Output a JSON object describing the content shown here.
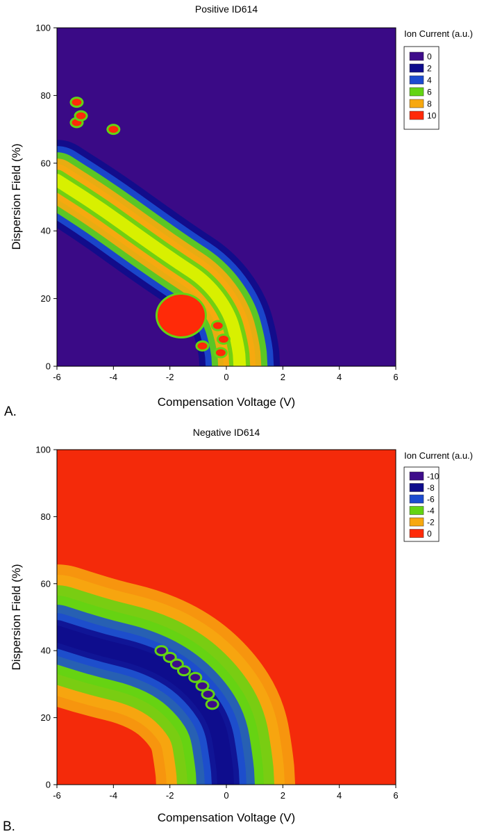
{
  "chart_data": [
    {
      "type": "heatmap",
      "subtype": "filled-contour",
      "title": "Positive ID614",
      "panel_label": "A.",
      "xlabel": "Compensation Voltage (V)",
      "ylabel": "Dispersion Field (%)",
      "xlim": [
        -6,
        6
      ],
      "ylim": [
        0,
        100
      ],
      "xticks": [
        "-6",
        "-4",
        "-2",
        "0",
        "2",
        "4",
        "6"
      ],
      "yticks": [
        "0",
        "20",
        "40",
        "60",
        "80",
        "100"
      ],
      "legend_title": "Ion Current (a.u.)",
      "legend_position": "right",
      "legend": [
        {
          "label": "0",
          "color": "#3e0c8a"
        },
        {
          "label": "2",
          "color": "#0e0c8c"
        },
        {
          "label": "4",
          "color": "#1c4bd0"
        },
        {
          "label": "6",
          "color": "#63d413"
        },
        {
          "label": "8",
          "color": "#f7a80f"
        },
        {
          "label": "10",
          "color": "#ff2a08"
        }
      ],
      "background_color": "#3a0a86",
      "main_band": {
        "description": "curved ridge of signal",
        "peak_value": 7,
        "path_x": [
          -6,
          -4.5,
          -3,
          -1.8,
          -0.7,
          0.1,
          0.4,
          0.5
        ],
        "path_y": [
          55,
          47,
          38,
          31,
          25,
          16,
          7,
          0
        ]
      },
      "hotspots": [
        {
          "x": -5.3,
          "y": 78,
          "value": 10
        },
        {
          "x": -5.3,
          "y": 72,
          "value": 10
        },
        {
          "x": -5.15,
          "y": 74,
          "value": 10
        },
        {
          "x": -4.0,
          "y": 70,
          "value": 10
        },
        {
          "x": -1.6,
          "y": 15,
          "value": 10
        },
        {
          "x": -0.85,
          "y": 6,
          "value": 10
        },
        {
          "x": -0.3,
          "y": 12,
          "value": 10
        },
        {
          "x": -0.1,
          "y": 8,
          "value": 10
        },
        {
          "x": -0.2,
          "y": 4,
          "value": 10
        }
      ]
    },
    {
      "type": "heatmap",
      "subtype": "filled-contour",
      "title": "Negative ID614",
      "panel_label": "B.",
      "xlabel": "Compensation Voltage (V)",
      "ylabel": "Dispersion Field (%)",
      "xlim": [
        -6,
        6
      ],
      "ylim": [
        0,
        100
      ],
      "xticks": [
        "-6",
        "-4",
        "-2",
        "0",
        "2",
        "4",
        "6"
      ],
      "yticks": [
        "0",
        "20",
        "40",
        "60",
        "80",
        "100"
      ],
      "legend_title": "Ion Current (a.u.)",
      "legend_position": "right",
      "legend": [
        {
          "label": "-10",
          "color": "#3e0c8a"
        },
        {
          "label": "-8",
          "color": "#0e0c8c"
        },
        {
          "label": "-6",
          "color": "#1c4bd0"
        },
        {
          "label": "-4",
          "color": "#63d413"
        },
        {
          "label": "-2",
          "color": "#f7a80f"
        },
        {
          "label": "0",
          "color": "#ff2a08"
        }
      ],
      "background_color": "#f42a0a",
      "main_band": {
        "description": "curved trough of signal",
        "peak_value": -8,
        "path_x": [
          -6,
          -4.5,
          -3,
          -1.8,
          -0.9,
          -0.3,
          -0.1,
          0
        ],
        "path_y": [
          45,
          41,
          38,
          33,
          26,
          18,
          8,
          0
        ]
      },
      "hotspots": [
        {
          "x": -2.3,
          "y": 40,
          "value": -10
        },
        {
          "x": -2.0,
          "y": 38,
          "value": -10
        },
        {
          "x": -1.75,
          "y": 36,
          "value": -10
        },
        {
          "x": -1.5,
          "y": 34,
          "value": -10
        },
        {
          "x": -1.1,
          "y": 32,
          "value": -10
        },
        {
          "x": -0.85,
          "y": 29.5,
          "value": -10
        },
        {
          "x": -0.65,
          "y": 27,
          "value": -10
        },
        {
          "x": -0.5,
          "y": 24,
          "value": -10
        }
      ]
    }
  ]
}
